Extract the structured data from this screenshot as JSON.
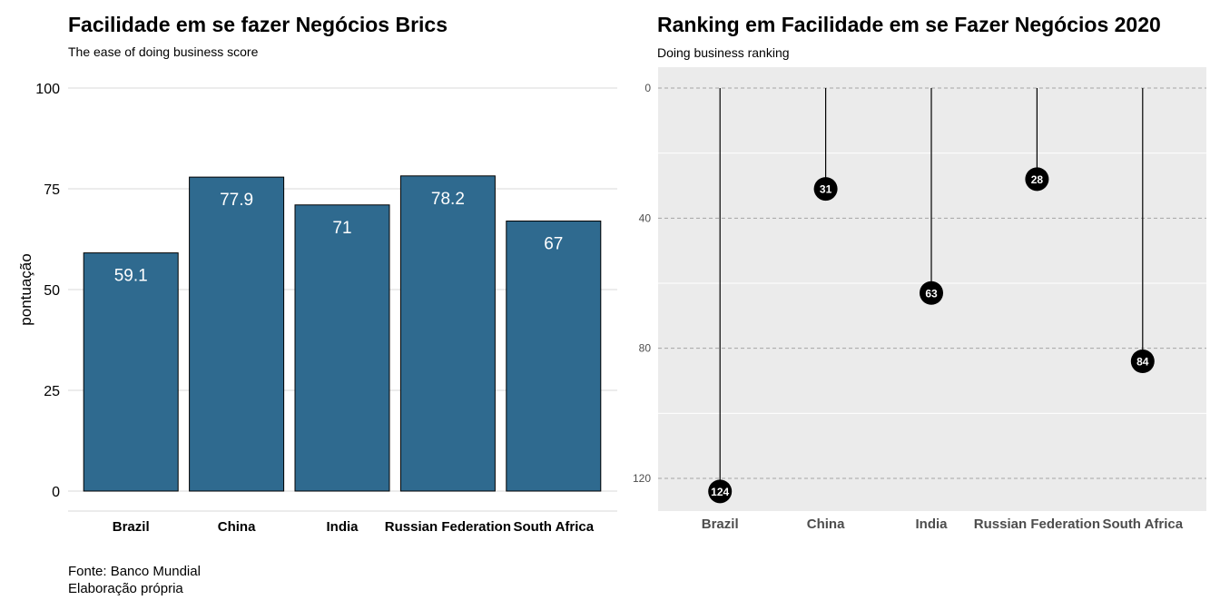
{
  "chart_data": [
    {
      "type": "bar",
      "title": "Facilidade em se fazer Negócios Brics",
      "subtitle": "The ease of doing business score",
      "xlabel": "",
      "ylabel": "pontuação",
      "categories": [
        "Brazil",
        "China",
        "India",
        "Russian Federation",
        "South Africa"
      ],
      "values": [
        59.1,
        77.9,
        71,
        78.2,
        67
      ],
      "value_labels": [
        "59.1",
        "77.9",
        "71",
        "78.2",
        "67"
      ],
      "ylim": [
        0,
        100
      ],
      "yticks": [
        0,
        25,
        50,
        75,
        100
      ],
      "bar_color": "#2f6a8f",
      "caption": [
        "Fonte: Banco Mundial",
        "Elaboração própria"
      ]
    },
    {
      "type": "lollipop",
      "title": "Ranking em Facilidade em se Fazer Negócios 2020",
      "subtitle": "Doing business ranking",
      "xlabel": "",
      "ylabel": "",
      "categories": [
        "Brazil",
        "China",
        "India",
        "Russian Federation",
        "South Africa"
      ],
      "values": [
        124,
        31,
        63,
        28,
        84
      ],
      "ylim": [
        0,
        130
      ],
      "y_reversed": true,
      "yticks": [
        0,
        40,
        80,
        120
      ],
      "panel_color": "#ebebeb",
      "point_color": "#000000"
    }
  ]
}
